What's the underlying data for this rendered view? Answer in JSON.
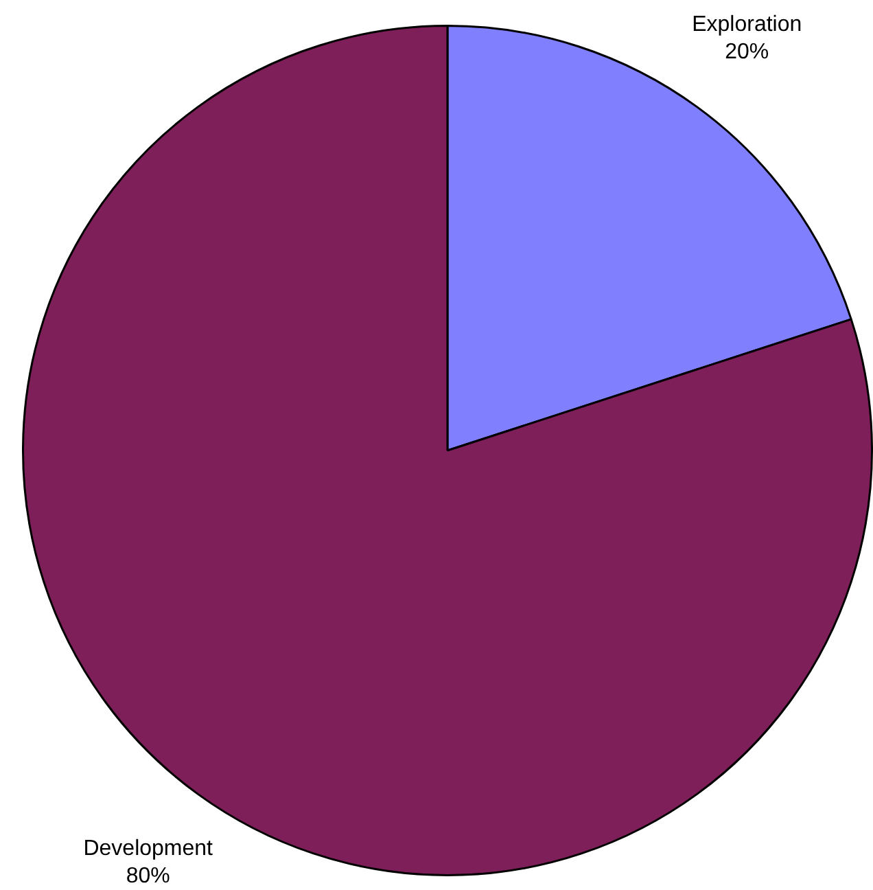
{
  "chart_data": {
    "type": "pie",
    "categories": [
      "Exploration",
      "Development"
    ],
    "values": [
      20,
      80
    ],
    "colors": [
      "#8080ff",
      "#7f1f5a"
    ],
    "value_labels": [
      "20%",
      "80%"
    ],
    "legend": false
  }
}
